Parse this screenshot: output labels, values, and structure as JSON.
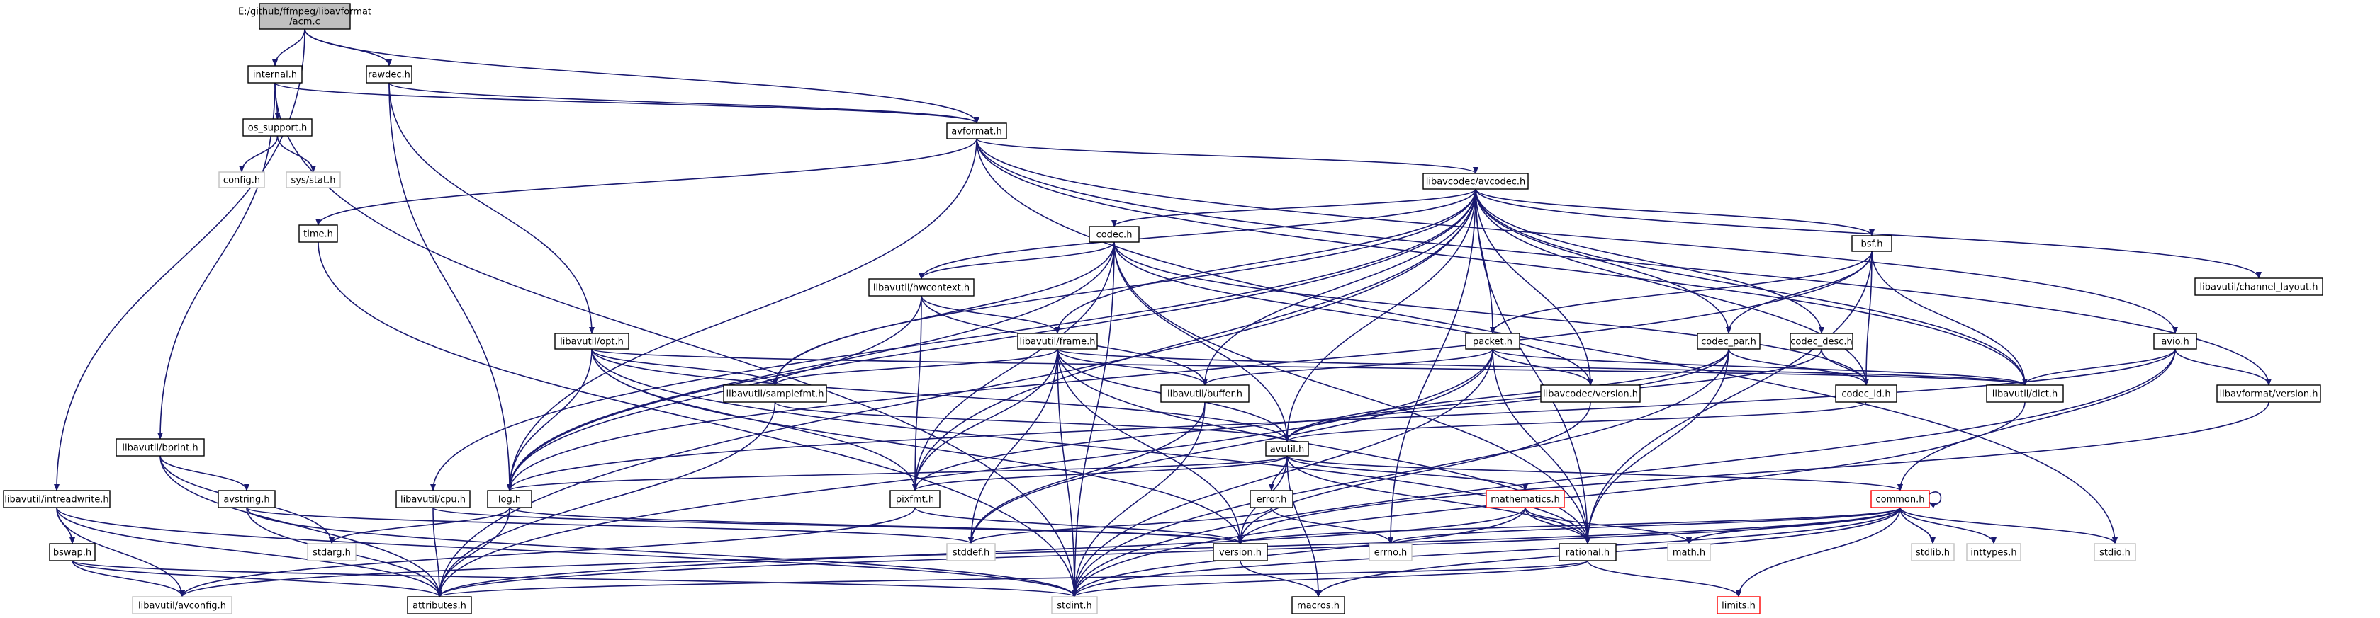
{
  "colors": {
    "edge": "#191970",
    "border_normal": "#000000",
    "border_missing": "#c0c0c0",
    "border_truncated": "#ff0000",
    "fill_root": "#bfbfbf",
    "fill_normal": "#ffffff"
  },
  "nodes": [
    {
      "id": "root",
      "label": "E:/github/ffmpeg/libavformat\n/acm.c",
      "kind": "root"
    },
    {
      "id": "internal",
      "label": "internal.h",
      "kind": "normal"
    },
    {
      "id": "rawdec",
      "label": "rawdec.h",
      "kind": "normal"
    },
    {
      "id": "avformat",
      "label": "avformat.h",
      "kind": "normal"
    },
    {
      "id": "os_support",
      "label": "os_support.h",
      "kind": "normal"
    },
    {
      "id": "config",
      "label": "config.h",
      "kind": "missing"
    },
    {
      "id": "sysstat",
      "label": "sys/stat.h",
      "kind": "missing"
    },
    {
      "id": "avcodec",
      "label": "libavcodec/avcodec.h",
      "kind": "normal"
    },
    {
      "id": "time",
      "label": "time.h",
      "kind": "normal"
    },
    {
      "id": "codec",
      "label": "codec.h",
      "kind": "normal"
    },
    {
      "id": "hwcontext",
      "label": "libavutil/hwcontext.h",
      "kind": "normal"
    },
    {
      "id": "bsf",
      "label": "bsf.h",
      "kind": "normal"
    },
    {
      "id": "chlayout",
      "label": "libavutil/channel_layout.h",
      "kind": "normal"
    },
    {
      "id": "opt",
      "label": "libavutil/opt.h",
      "kind": "normal"
    },
    {
      "id": "frame",
      "label": "libavutil/frame.h",
      "kind": "normal"
    },
    {
      "id": "packet",
      "label": "packet.h",
      "kind": "normal"
    },
    {
      "id": "codec_par",
      "label": "codec_par.h",
      "kind": "normal"
    },
    {
      "id": "codec_desc",
      "label": "codec_desc.h",
      "kind": "normal"
    },
    {
      "id": "avio",
      "label": "avio.h",
      "kind": "normal"
    },
    {
      "id": "samplefmt",
      "label": "libavutil/samplefmt.h",
      "kind": "normal"
    },
    {
      "id": "buffer",
      "label": "libavutil/buffer.h",
      "kind": "normal"
    },
    {
      "id": "codec_id",
      "label": "codec_id.h",
      "kind": "normal"
    },
    {
      "id": "dict",
      "label": "libavutil/dict.h",
      "kind": "normal"
    },
    {
      "id": "avcversion",
      "label": "libavcodec/version.h",
      "kind": "normal"
    },
    {
      "id": "avfversion",
      "label": "libavformat/version.h",
      "kind": "normal"
    },
    {
      "id": "bprint",
      "label": "libavutil/bprint.h",
      "kind": "normal"
    },
    {
      "id": "avutil",
      "label": "avutil.h",
      "kind": "normal"
    },
    {
      "id": "intreadwrite",
      "label": "libavutil/intreadwrite.h",
      "kind": "normal"
    },
    {
      "id": "cpu",
      "label": "libavutil/cpu.h",
      "kind": "normal"
    },
    {
      "id": "avstring",
      "label": "avstring.h",
      "kind": "normal"
    },
    {
      "id": "log",
      "label": "log.h",
      "kind": "normal"
    },
    {
      "id": "pixfmt",
      "label": "pixfmt.h",
      "kind": "normal"
    },
    {
      "id": "error",
      "label": "error.h",
      "kind": "normal"
    },
    {
      "id": "mathematics",
      "label": "mathematics.h",
      "kind": "truncated"
    },
    {
      "id": "common",
      "label": "common.h",
      "kind": "truncated"
    },
    {
      "id": "bswap",
      "label": "bswap.h",
      "kind": "normal"
    },
    {
      "id": "stdarg",
      "label": "stdarg.h",
      "kind": "missing"
    },
    {
      "id": "stddef",
      "label": "stddef.h",
      "kind": "missing"
    },
    {
      "id": "version",
      "label": "version.h",
      "kind": "normal"
    },
    {
      "id": "errno",
      "label": "errno.h",
      "kind": "missing"
    },
    {
      "id": "rational",
      "label": "rational.h",
      "kind": "normal"
    },
    {
      "id": "math",
      "label": "math.h",
      "kind": "missing"
    },
    {
      "id": "stdlib",
      "label": "stdlib.h",
      "kind": "missing"
    },
    {
      "id": "inttypes",
      "label": "inttypes.h",
      "kind": "missing"
    },
    {
      "id": "stdio",
      "label": "stdio.h",
      "kind": "missing"
    },
    {
      "id": "avconfig",
      "label": "libavutil/avconfig.h",
      "kind": "missing"
    },
    {
      "id": "attributes",
      "label": "attributes.h",
      "kind": "normal"
    },
    {
      "id": "stdint",
      "label": "stdint.h",
      "kind": "missing"
    },
    {
      "id": "macros",
      "label": "macros.h",
      "kind": "normal"
    },
    {
      "id": "limits",
      "label": "limits.h",
      "kind": "truncated"
    }
  ],
  "edges": [
    [
      "root",
      "internal"
    ],
    [
      "root",
      "rawdec"
    ],
    [
      "root",
      "avformat"
    ],
    [
      "root",
      "intreadwrite"
    ],
    [
      "internal",
      "os_support"
    ],
    [
      "internal",
      "avformat"
    ],
    [
      "internal",
      "bprint"
    ],
    [
      "internal",
      "stdint"
    ],
    [
      "os_support",
      "config"
    ],
    [
      "os_support",
      "sysstat"
    ],
    [
      "rawdec",
      "avformat"
    ],
    [
      "rawdec",
      "opt"
    ],
    [
      "rawdec",
      "log"
    ],
    [
      "avformat",
      "time"
    ],
    [
      "avformat",
      "stdio"
    ],
    [
      "avformat",
      "avcodec"
    ],
    [
      "avformat",
      "avio"
    ],
    [
      "avformat",
      "dict"
    ],
    [
      "avformat",
      "log"
    ],
    [
      "avformat",
      "avfversion"
    ],
    [
      "time",
      "stdint"
    ],
    [
      "avcodec",
      "errno"
    ],
    [
      "avcodec",
      "samplefmt"
    ],
    [
      "avcodec",
      "attributes"
    ],
    [
      "avcodec",
      "avutil"
    ],
    [
      "avcodec",
      "buffer"
    ],
    [
      "avcodec",
      "cpu"
    ],
    [
      "avcodec",
      "chlayout"
    ],
    [
      "avcodec",
      "dict"
    ],
    [
      "avcodec",
      "frame"
    ],
    [
      "avcodec",
      "log"
    ],
    [
      "avcodec",
      "pixfmt"
    ],
    [
      "avcodec",
      "rational"
    ],
    [
      "avcodec",
      "codec"
    ],
    [
      "avcodec",
      "codec_desc"
    ],
    [
      "avcodec",
      "codec_id"
    ],
    [
      "avcodec",
      "codec_par"
    ],
    [
      "avcodec",
      "packet"
    ],
    [
      "avcodec",
      "bsf"
    ],
    [
      "avcodec",
      "avcversion"
    ],
    [
      "avcodec",
      "hwcontext"
    ],
    [
      "codec",
      "stdint"
    ],
    [
      "codec",
      "avutil"
    ],
    [
      "codec",
      "hwcontext"
    ],
    [
      "codec",
      "log"
    ],
    [
      "codec",
      "pixfmt"
    ],
    [
      "codec",
      "rational"
    ],
    [
      "codec",
      "samplefmt"
    ],
    [
      "codec",
      "codec_id"
    ],
    [
      "codec",
      "avcversion"
    ],
    [
      "hwcontext",
      "buffer"
    ],
    [
      "hwcontext",
      "frame"
    ],
    [
      "hwcontext",
      "log"
    ],
    [
      "hwcontext",
      "pixfmt"
    ],
    [
      "frame",
      "stddef"
    ],
    [
      "frame",
      "stdint"
    ],
    [
      "frame",
      "avutil"
    ],
    [
      "frame",
      "buffer"
    ],
    [
      "frame",
      "dict"
    ],
    [
      "frame",
      "rational"
    ],
    [
      "frame",
      "samplefmt"
    ],
    [
      "frame",
      "pixfmt"
    ],
    [
      "frame",
      "version"
    ],
    [
      "bsf",
      "dict"
    ],
    [
      "bsf",
      "log"
    ],
    [
      "bsf",
      "rational"
    ],
    [
      "bsf",
      "codec_id"
    ],
    [
      "bsf",
      "codec_par"
    ],
    [
      "bsf",
      "packet"
    ],
    [
      "opt",
      "rational"
    ],
    [
      "opt",
      "avutil"
    ],
    [
      "opt",
      "dict"
    ],
    [
      "opt",
      "log"
    ],
    [
      "opt",
      "pixfmt"
    ],
    [
      "opt",
      "samplefmt"
    ],
    [
      "opt",
      "version"
    ],
    [
      "packet",
      "stddef"
    ],
    [
      "packet",
      "stdint"
    ],
    [
      "packet",
      "attributes"
    ],
    [
      "packet",
      "buffer"
    ],
    [
      "packet",
      "dict"
    ],
    [
      "packet",
      "rational"
    ],
    [
      "packet",
      "avcversion"
    ],
    [
      "codec_par",
      "stdint"
    ],
    [
      "codec_par",
      "avutil"
    ],
    [
      "codec_par",
      "rational"
    ],
    [
      "codec_par",
      "pixfmt"
    ],
    [
      "codec_par",
      "codec_id"
    ],
    [
      "codec_desc",
      "avutil"
    ],
    [
      "codec_desc",
      "codec_id"
    ],
    [
      "avio",
      "stdint"
    ],
    [
      "avio",
      "common"
    ],
    [
      "avio",
      "dict"
    ],
    [
      "avio",
      "log"
    ],
    [
      "avio",
      "avfversion"
    ],
    [
      "samplefmt",
      "avutil"
    ],
    [
      "samplefmt",
      "attributes"
    ],
    [
      "buffer",
      "stddef"
    ],
    [
      "buffer",
      "stdint"
    ],
    [
      "codec_id",
      "avutil"
    ],
    [
      "dict",
      "stdint"
    ],
    [
      "avcversion",
      "version"
    ],
    [
      "avfversion",
      "version"
    ],
    [
      "bprint",
      "stdarg"
    ],
    [
      "bprint",
      "attributes"
    ],
    [
      "bprint",
      "avstring"
    ],
    [
      "avutil",
      "common"
    ],
    [
      "avutil",
      "error"
    ],
    [
      "avutil",
      "rational"
    ],
    [
      "avutil",
      "version"
    ],
    [
      "avutil",
      "macros"
    ],
    [
      "avutil",
      "mathematics"
    ],
    [
      "avutil",
      "log"
    ],
    [
      "avutil",
      "pixfmt"
    ],
    [
      "intreadwrite",
      "stdint"
    ],
    [
      "intreadwrite",
      "avconfig"
    ],
    [
      "intreadwrite",
      "attributes"
    ],
    [
      "intreadwrite",
      "bswap"
    ],
    [
      "cpu",
      "attributes"
    ],
    [
      "cpu",
      "version"
    ],
    [
      "avstring",
      "stddef"
    ],
    [
      "avstring",
      "stdint"
    ],
    [
      "avstring",
      "attributes"
    ],
    [
      "log",
      "stdarg"
    ],
    [
      "log",
      "attributes"
    ],
    [
      "log",
      "version"
    ],
    [
      "pixfmt",
      "avconfig"
    ],
    [
      "pixfmt",
      "version"
    ],
    [
      "error",
      "errno"
    ],
    [
      "error",
      "stddef"
    ],
    [
      "mathematics",
      "stdint"
    ],
    [
      "mathematics",
      "math"
    ],
    [
      "mathematics",
      "attributes"
    ],
    [
      "mathematics",
      "rational"
    ],
    [
      "mathematics",
      "intfloat_dummy"
    ],
    [
      "common",
      "errno"
    ],
    [
      "common",
      "inttypes"
    ],
    [
      "common",
      "limits"
    ],
    [
      "common",
      "math"
    ],
    [
      "common",
      "stdint"
    ],
    [
      "common",
      "stdio"
    ],
    [
      "common",
      "stdlib"
    ],
    [
      "common",
      "string_dummy"
    ],
    [
      "common",
      "attributes"
    ],
    [
      "common",
      "macros"
    ],
    [
      "common",
      "version"
    ],
    [
      "common",
      "avconfig"
    ],
    [
      "common",
      "common"
    ],
    [
      "bswap",
      "stdint"
    ],
    [
      "bswap",
      "avconfig"
    ],
    [
      "bswap",
      "attributes"
    ],
    [
      "version",
      "macros"
    ],
    [
      "rational",
      "stdint"
    ],
    [
      "rational",
      "limits"
    ],
    [
      "rational",
      "attributes"
    ]
  ]
}
